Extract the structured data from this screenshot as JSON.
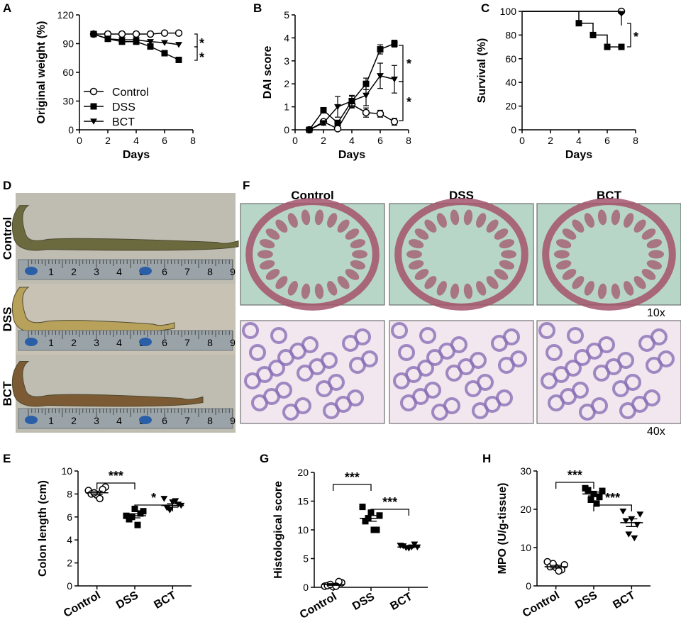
{
  "panels": {
    "A": "A",
    "B": "B",
    "C": "C",
    "D": "D",
    "E": "E",
    "F": "F",
    "G": "G",
    "H": "H"
  },
  "chart_data": [
    {
      "id": "A",
      "type": "line",
      "xlabel": "Days",
      "ylabel": "Original weight (%)",
      "xlim": [
        0,
        8
      ],
      "ylim": [
        0,
        120
      ],
      "xticks": [
        "0",
        "2",
        "4",
        "6",
        "8"
      ],
      "yticks": [
        "0",
        "30",
        "60",
        "90",
        "120"
      ],
      "legend": [
        "Control",
        "DSS",
        "BCT"
      ],
      "legend_position": "bottom-left",
      "series": [
        {
          "name": "Control",
          "marker": "circle-open",
          "x": [
            1,
            2,
            3,
            4,
            5,
            6,
            7
          ],
          "y": [
            100,
            100,
            100,
            100,
            100,
            101,
            101
          ]
        },
        {
          "name": "DSS",
          "marker": "square",
          "x": [
            1,
            2,
            3,
            4,
            5,
            6,
            7
          ],
          "y": [
            100,
            95,
            92,
            92,
            87,
            80,
            73
          ]
        },
        {
          "name": "BCT",
          "marker": "triangle-down",
          "x": [
            1,
            2,
            3,
            4,
            5,
            6,
            7
          ],
          "y": [
            100,
            95,
            94,
            94,
            92,
            91,
            89
          ]
        }
      ],
      "significance": [
        "*",
        "*"
      ]
    },
    {
      "id": "B",
      "type": "line",
      "xlabel": "Days",
      "ylabel": "DAI score",
      "xlim": [
        0,
        8
      ],
      "ylim": [
        0,
        5
      ],
      "xticks": [
        "0",
        "2",
        "4",
        "6",
        "8"
      ],
      "yticks": [
        "0",
        "1",
        "2",
        "3",
        "4",
        "5"
      ],
      "series": [
        {
          "name": "Control",
          "marker": "circle-open",
          "x": [
            1,
            2,
            3,
            4,
            5,
            6,
            7
          ],
          "y": [
            0,
            0.35,
            0.05,
            1.1,
            0.75,
            0.7,
            0.35
          ],
          "err": [
            0,
            0.1,
            0.05,
            0.15,
            0.2,
            0.15,
            0.15
          ]
        },
        {
          "name": "DSS",
          "marker": "square",
          "x": [
            1,
            2,
            3,
            4,
            5,
            6,
            7
          ],
          "y": [
            0,
            0.85,
            0.3,
            1.25,
            2.0,
            3.5,
            3.75
          ],
          "err": [
            0,
            0.1,
            0.1,
            0.2,
            0.25,
            0.2,
            0.15
          ]
        },
        {
          "name": "BCT",
          "marker": "triangle-down",
          "x": [
            1,
            2,
            3,
            4,
            5,
            6,
            7
          ],
          "y": [
            0,
            0.3,
            1.0,
            1.25,
            1.5,
            2.35,
            2.2
          ],
          "err": [
            0,
            0.1,
            0.45,
            0.25,
            0.45,
            0.55,
            0.6
          ]
        }
      ],
      "significance": [
        "*",
        "*"
      ]
    },
    {
      "id": "C",
      "type": "line",
      "xlabel": "Days",
      "ylabel": "Survival (%)",
      "xlim": [
        0,
        8
      ],
      "ylim": [
        0,
        100
      ],
      "xticks": [
        "0",
        "2",
        "4",
        "6",
        "8"
      ],
      "yticks": [
        "0",
        "20",
        "40",
        "60",
        "80",
        "100"
      ],
      "series": [
        {
          "name": "Control",
          "marker": "circle-open",
          "steps": [
            [
              0,
              100
            ],
            [
              7,
              100
            ]
          ],
          "points": [
            [
              7,
              100
            ]
          ]
        },
        {
          "name": "DSS",
          "marker": "square",
          "steps": [
            [
              0,
              100
            ],
            [
              4,
              100
            ],
            [
              4,
              90
            ],
            [
              5,
              90
            ],
            [
              5,
              80
            ],
            [
              6,
              80
            ],
            [
              6,
              70
            ],
            [
              7,
              70
            ]
          ],
          "points": [
            [
              4,
              90
            ],
            [
              5,
              80
            ],
            [
              6,
              70
            ],
            [
              7,
              70
            ]
          ]
        },
        {
          "name": "BCT",
          "marker": "triangle-down",
          "steps": [
            [
              0,
              100
            ],
            [
              7,
              100
            ]
          ],
          "points": [
            [
              7,
              98
            ]
          ]
        }
      ],
      "significance": [
        "*"
      ]
    },
    {
      "id": "E",
      "type": "scatter",
      "xlabel": "",
      "ylabel": "Colon length (cm)",
      "ylim": [
        0,
        10
      ],
      "yticks": [
        "0",
        "2",
        "4",
        "6",
        "8",
        "10"
      ],
      "categories": [
        "Control",
        "DSS",
        "BCT"
      ],
      "markers": [
        "circle-open",
        "square",
        "triangle-down"
      ],
      "series": [
        {
          "name": "Control",
          "values": [
            8.3,
            8.6,
            7.9,
            8.0,
            8.4,
            8.1,
            7.6
          ],
          "mean": 8.1,
          "sem": 0.15
        },
        {
          "name": "DSS",
          "values": [
            6.1,
            6.5,
            6.7,
            5.8,
            6.3,
            6.0,
            5.3
          ],
          "mean": 6.1,
          "sem": 0.18
        },
        {
          "name": "BCT",
          "values": [
            7.6,
            7.0,
            7.3,
            6.8,
            7.1,
            6.6,
            7.4
          ],
          "mean": 7.0,
          "sem": 0.15
        }
      ],
      "brackets": [
        {
          "from": 0,
          "to": 1,
          "label": "***"
        },
        {
          "from": 1,
          "to": 2,
          "label": "*"
        }
      ]
    },
    {
      "id": "G",
      "type": "scatter",
      "xlabel": "",
      "ylabel": "Histological score",
      "ylim": [
        0,
        20
      ],
      "yticks": [
        "0",
        "5",
        "10",
        "15",
        "20"
      ],
      "categories": [
        "Control",
        "DSS",
        "BCT"
      ],
      "markers": [
        "circle-open",
        "square",
        "triangle-down"
      ],
      "series": [
        {
          "name": "Control",
          "values": [
            0.2,
            0.8,
            0.1,
            0.3,
            1.0,
            0.5,
            0.2
          ],
          "mean": 0.5,
          "sem": 0.15
        },
        {
          "name": "DSS",
          "values": [
            14.0,
            12.5,
            13.0,
            11.5,
            10.0,
            12.0,
            10.0
          ],
          "mean": 12.0,
          "sem": 0.5
        },
        {
          "name": "BCT",
          "values": [
            7.3,
            7.0,
            6.8,
            7.2,
            7.5,
            6.9,
            7.0
          ],
          "mean": 7.0,
          "sem": 0.12
        }
      ],
      "brackets": [
        {
          "from": 0,
          "to": 1,
          "label": "***"
        },
        {
          "from": 1,
          "to": 2,
          "label": "***"
        }
      ]
    },
    {
      "id": "H",
      "type": "scatter",
      "xlabel": "",
      "ylabel": "MPO (U/g-tissue)",
      "ylim": [
        0,
        30
      ],
      "yticks": [
        "0",
        "10",
        "20",
        "30"
      ],
      "categories": [
        "Control",
        "DSS",
        "BCT"
      ],
      "markers": [
        "circle-open",
        "square",
        "triangle-down"
      ],
      "series": [
        {
          "name": "Control",
          "values": [
            6.3,
            5.5,
            4.8,
            5.0,
            4.2,
            5.8,
            3.9
          ],
          "mean": 5.0,
          "sem": 0.35
        },
        {
          "name": "DSS",
          "values": [
            25.5,
            24.8,
            24.0,
            25.0,
            23.2,
            22.5,
            21.5
          ],
          "mean": 24.0,
          "sem": 0.5
        },
        {
          "name": "BCT",
          "values": [
            19.5,
            18.7,
            17.5,
            17.0,
            16.0,
            13.5,
            12.5
          ],
          "mean": 16.5,
          "sem": 1.0
        }
      ],
      "brackets": [
        {
          "from": 0,
          "to": 1,
          "label": "***"
        },
        {
          "from": 1,
          "to": 2,
          "label": "***"
        }
      ]
    }
  ],
  "photo_d": {
    "rows": [
      {
        "label": "Control",
        "color": "#6b6a3e"
      },
      {
        "label": "DSS",
        "color": "#b8a15a"
      },
      {
        "label": "BCT",
        "color": "#7c5a34"
      }
    ],
    "ruler_numbers": [
      "1",
      "2",
      "3",
      "4",
      "5",
      "6",
      "7",
      "8",
      "9"
    ]
  },
  "histology_f": {
    "columns": [
      "Control",
      "DSS",
      "BCT"
    ],
    "magnifications": [
      "10x",
      "40x"
    ],
    "colors": {
      "stain_low": "#a3546b",
      "stain_high": "#8a6fb5",
      "background_low": "#b8d6c8",
      "background_high": "#f2e6ef"
    }
  },
  "colors": {
    "ink": "#000000",
    "ruler": "#9aa3a8",
    "ruler_blue": "#2a5fa8"
  }
}
